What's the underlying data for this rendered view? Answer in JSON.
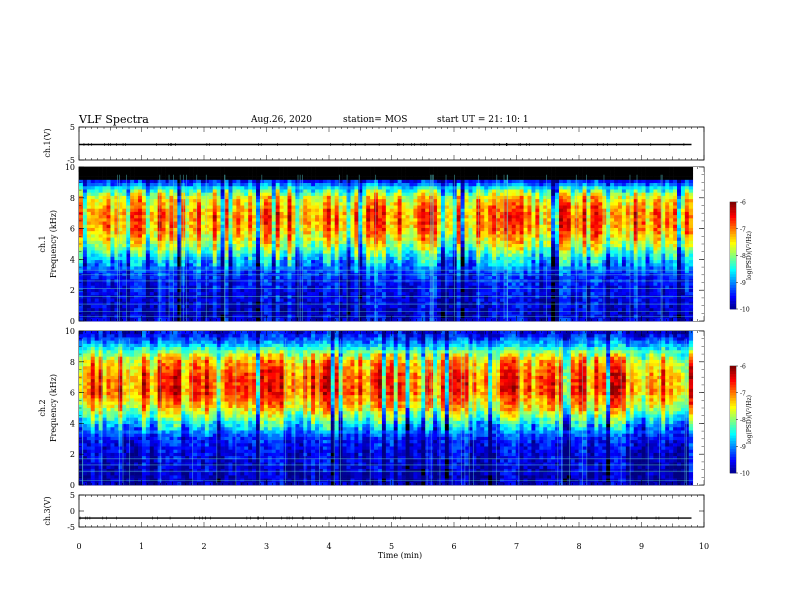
{
  "header": {
    "title": "VLF Spectra",
    "date": "Aug.26, 2020",
    "station": "station= MOS",
    "start": "start  UT  =  21: 10: 1"
  },
  "chart_data": [
    {
      "type": "line",
      "panel": "ch.1 waveform",
      "ylabel": "ch.1(V)",
      "ylim": [
        -5,
        5
      ],
      "yticks": [
        "5",
        "-5"
      ],
      "xlim": [
        0,
        10
      ],
      "series": [
        {
          "values_description_free": true,
          "x": [
            0,
            9.8
          ],
          "y": [
            -0.3,
            -0.3
          ]
        }
      ]
    },
    {
      "type": "heatmap",
      "panel": "ch.1 spectrogram",
      "ylabel": "ch.1 Frequency (kHz)",
      "ylim": [
        0,
        10
      ],
      "yticks": [
        "0",
        "2",
        "4",
        "6",
        "8",
        "10"
      ],
      "xlim": [
        0,
        10
      ],
      "colorbar": {
        "label": "log(PSD)(V²/Hz)",
        "ticks": [
          "-6",
          "-7",
          "-8",
          "-9",
          "-10"
        ],
        "range": [
          -10,
          -6
        ]
      },
      "intensity_profile": {
        "freq_khz": [
          0,
          0.5,
          1,
          2,
          3,
          4,
          5,
          6,
          7,
          8,
          8.5,
          9,
          9.5,
          10
        ],
        "log_psd": [
          -9.6,
          -9.7,
          -9.6,
          -9.5,
          -9.3,
          -8.6,
          -7.6,
          -7.0,
          -6.9,
          -7.4,
          -8.2,
          -9.3,
          -9.8,
          -10
        ]
      }
    },
    {
      "type": "heatmap",
      "panel": "ch.2 spectrogram",
      "ylabel": "ch.2 Frequency (kHz)",
      "ylim": [
        0,
        10
      ],
      "yticks": [
        "0",
        "2",
        "4",
        "6",
        "8",
        "10"
      ],
      "xlim": [
        0,
        10
      ],
      "colorbar": {
        "label": "log(PSD)(V²/Hz)",
        "ticks": [
          "-6",
          "-7",
          "-8",
          "-9",
          "-10"
        ],
        "range": [
          -10,
          -6
        ]
      },
      "intensity_profile": {
        "freq_khz": [
          0,
          0.5,
          1,
          2,
          3,
          4,
          5,
          6,
          7,
          8,
          8.5,
          9,
          9.5,
          10
        ],
        "log_psd": [
          -9.7,
          -9.8,
          -9.7,
          -9.6,
          -9.4,
          -8.5,
          -7.4,
          -6.8,
          -6.8,
          -7.2,
          -7.8,
          -8.6,
          -9.2,
          -9.6
        ]
      }
    },
    {
      "type": "line",
      "panel": "ch.3 waveform",
      "ylabel": "ch.3(V)",
      "ylim": [
        -5,
        5
      ],
      "yticks": [
        "5",
        "0",
        "-5"
      ],
      "xlabel": "Time (min)",
      "xticks": [
        "0",
        "1",
        "2",
        "3",
        "4",
        "5",
        "6",
        "7",
        "8",
        "9",
        "10"
      ],
      "xlim": [
        0,
        10
      ],
      "series": [
        {
          "x": [
            0,
            9.8
          ],
          "y": [
            -2.2,
            -2.2
          ]
        }
      ]
    }
  ]
}
